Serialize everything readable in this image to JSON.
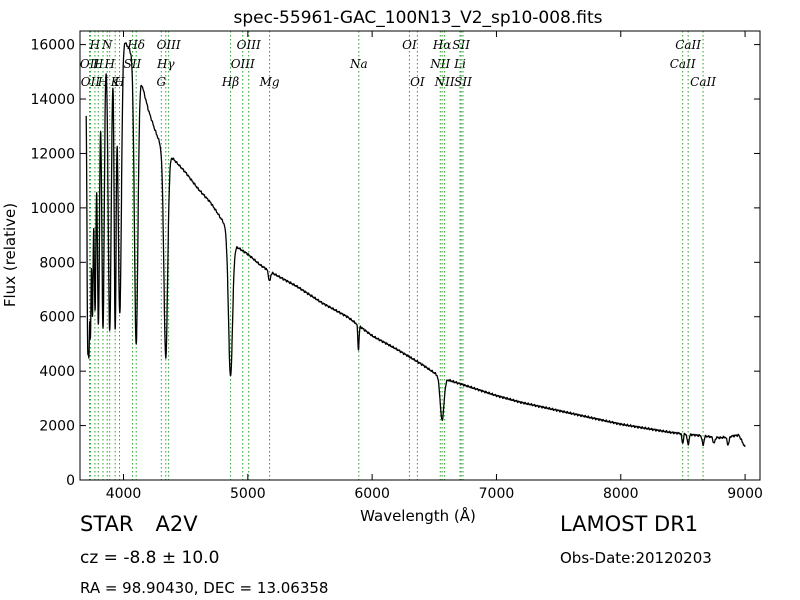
{
  "chart_data": {
    "type": "line",
    "title": "spec-55961-GAC_100N13_V2_sp10-008.fits",
    "xlabel": "Wavelength (Å)",
    "ylabel": "Flux (relative)",
    "xlim": [
      3650,
      9120
    ],
    "ylim": [
      0,
      16500
    ],
    "x_ticks": [
      4000,
      5000,
      6000,
      7000,
      8000,
      9000
    ],
    "y_ticks": [
      0,
      2000,
      4000,
      6000,
      8000,
      10000,
      12000,
      14000,
      16000
    ],
    "line_color": "#000000",
    "marker_color": "#2ca02c",
    "continuum": [
      [
        3700,
        14600
      ],
      [
        3800,
        15600
      ],
      [
        3900,
        16200
      ],
      [
        4000,
        16200
      ],
      [
        4100,
        15400
      ],
      [
        4200,
        13600
      ],
      [
        4250,
        12900
      ],
      [
        4300,
        12300
      ],
      [
        4400,
        11800
      ],
      [
        4500,
        11300
      ],
      [
        4600,
        10700
      ],
      [
        4700,
        10200
      ],
      [
        4800,
        9500
      ],
      [
        4900,
        8600
      ],
      [
        5000,
        8300
      ],
      [
        5100,
        7900
      ],
      [
        5200,
        7600
      ],
      [
        5400,
        7100
      ],
      [
        5600,
        6500
      ],
      [
        5800,
        6000
      ],
      [
        6000,
        5300
      ],
      [
        6200,
        4800
      ],
      [
        6400,
        4250
      ],
      [
        6560,
        3750
      ],
      [
        6800,
        3400
      ],
      [
        7000,
        3100
      ],
      [
        7200,
        2850
      ],
      [
        7400,
        2650
      ],
      [
        7600,
        2450
      ],
      [
        7800,
        2250
      ],
      [
        8000,
        2050
      ],
      [
        8200,
        1900
      ],
      [
        8400,
        1750
      ],
      [
        8600,
        1650
      ],
      [
        8800,
        1550
      ],
      [
        8950,
        1650
      ],
      [
        9000,
        1200
      ]
    ],
    "absorption_lines": [
      {
        "center": 3712,
        "width": 6,
        "min": 5700
      },
      {
        "center": 3722,
        "width": 6,
        "min": 5800
      },
      {
        "center": 3734,
        "width": 6,
        "min": 5900
      },
      {
        "center": 3750,
        "width": 7,
        "min": 6200
      },
      {
        "center": 3771,
        "width": 8,
        "min": 6300
      },
      {
        "center": 3798,
        "width": 9,
        "min": 5700
      },
      {
        "center": 3835,
        "width": 10,
        "min": 5600
      },
      {
        "center": 3889,
        "width": 12,
        "min": 5500
      },
      {
        "center": 3933,
        "width": 8,
        "min": 5600
      },
      {
        "center": 3970,
        "width": 13,
        "min": 6100
      },
      {
        "center": 4102,
        "width": 14,
        "min": 5000
      },
      {
        "center": 4340,
        "width": 15,
        "min": 4500
      },
      {
        "center": 4861,
        "width": 16,
        "min": 3800
      },
      {
        "center": 5175,
        "width": 8,
        "min": 7300
      },
      {
        "center": 5890,
        "width": 5,
        "min": 4800
      },
      {
        "center": 6563,
        "width": 15,
        "min": 2200
      },
      {
        "center": 8498,
        "width": 6,
        "min": 1350
      },
      {
        "center": 8542,
        "width": 7,
        "min": 1300
      },
      {
        "center": 8662,
        "width": 7,
        "min": 1280
      },
      {
        "center": 8750,
        "width": 8,
        "min": 1350
      },
      {
        "center": 8863,
        "width": 8,
        "min": 1300
      }
    ],
    "line_markers": [
      {
        "wavelength": 3727,
        "label": "OII",
        "row": 1
      },
      {
        "wavelength": 3734,
        "label": "OII",
        "row": 2
      },
      {
        "wavelength": 3770,
        "label": "H",
        "row": 0
      },
      {
        "wavelength": 3797,
        "label": "H",
        "row": 1
      },
      {
        "wavelength": 3835,
        "label": "H",
        "row": 2
      },
      {
        "wavelength": 3869,
        "label": "N",
        "row": 0
      },
      {
        "wavelength": 3889,
        "label": "H",
        "row": 1
      },
      {
        "wavelength": 3933,
        "label": "K",
        "row": 2
      },
      {
        "wavelength": 3968,
        "label": "H",
        "row": 2
      },
      {
        "wavelength": 4072,
        "label": "SII",
        "row": 1
      },
      {
        "wavelength": 4102,
        "label": "Hδ",
        "row": 0
      },
      {
        "wavelength": 4304,
        "label": "G",
        "row": 2
      },
      {
        "wavelength": 4340,
        "label": "Hγ",
        "row": 1
      },
      {
        "wavelength": 4363,
        "label": "OIII",
        "row": 0
      },
      {
        "wavelength": 4861,
        "label": "Hβ",
        "row": 2
      },
      {
        "wavelength": 4959,
        "label": "OIII",
        "row": 1
      },
      {
        "wavelength": 5007,
        "label": "OIII",
        "row": 0
      },
      {
        "wavelength": 5175,
        "label": "Mg",
        "row": 2
      },
      {
        "wavelength": 5893,
        "label": "Na",
        "row": 1
      },
      {
        "wavelength": 6300,
        "label": "OI",
        "row": 0
      },
      {
        "wavelength": 6364,
        "label": "OI",
        "row": 2
      },
      {
        "wavelength": 6548,
        "label": "NII",
        "row": 1
      },
      {
        "wavelength": 6563,
        "label": "Hα",
        "row": 0
      },
      {
        "wavelength": 6583,
        "label": "NII",
        "row": 2
      },
      {
        "wavelength": 6707,
        "label": "Li",
        "row": 1
      },
      {
        "wavelength": 6716,
        "label": "SII",
        "row": 0
      },
      {
        "wavelength": 6731,
        "label": "SII",
        "row": 2
      },
      {
        "wavelength": 8498,
        "label": "CaII",
        "row": 1
      },
      {
        "wavelength": 8542,
        "label": "CaII",
        "row": 0
      },
      {
        "wavelength": 8662,
        "label": "CaII",
        "row": 2
      }
    ]
  },
  "footer": {
    "object_class": "STAR",
    "subclass": "A2V",
    "redshift": "cz = -8.8 ± 10.0",
    "coordinates": "RA = 98.90430, DEC = 13.06358",
    "survey": "LAMOST DR1",
    "obs_date": "Obs-Date:20120203"
  }
}
